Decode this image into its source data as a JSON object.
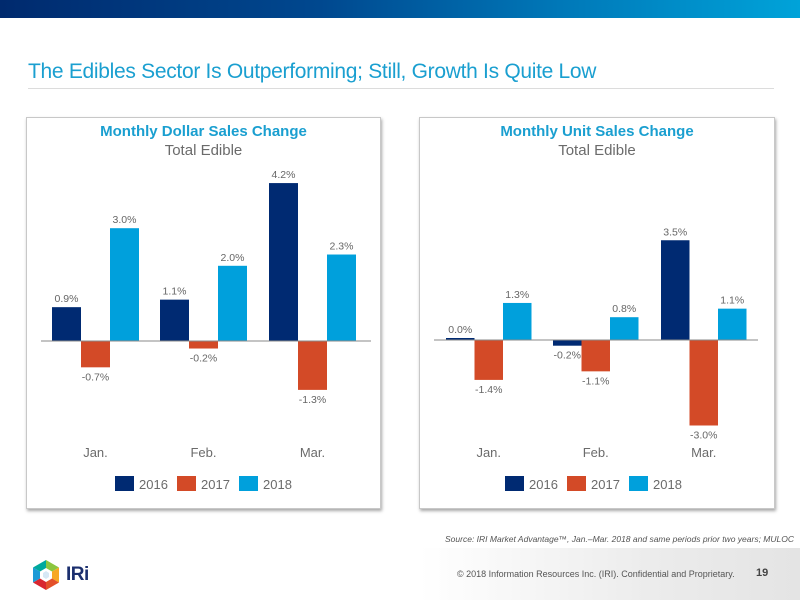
{
  "slide": {
    "title": "The Edibles Sector Is Outperforming; Still, Growth Is Quite Low",
    "source": "Source: IRI Market Advantage™, Jan.–Mar. 2018 and same periods prior two years; MULOC",
    "copyright": "© 2018 Information Resources Inc. (IRI). Confidential and Proprietary.",
    "page_number": "19",
    "logo_text": "IRi",
    "colors": {
      "2016": "#002a72",
      "2017": "#d34a27",
      "2018": "#00a0dc",
      "title": "#1a9fd0"
    }
  },
  "chart_data": [
    {
      "type": "bar",
      "title": "Monthly Dollar Sales Change",
      "subtitle": "Total Edible",
      "categories": [
        "Jan.",
        "Feb.",
        "Mar."
      ],
      "series": [
        {
          "name": "2016",
          "values": [
            0.9,
            1.1,
            4.2
          ],
          "labels": [
            "0.9%",
            "1.1%",
            "4.2%"
          ]
        },
        {
          "name": "2017",
          "values": [
            -0.7,
            -0.2,
            -1.3
          ],
          "labels": [
            "-0.7%",
            "-0.2%",
            "-1.3%"
          ]
        },
        {
          "name": "2018",
          "values": [
            3.0,
            2.0,
            2.3
          ],
          "labels": [
            "3.0%",
            "2.0%",
            "2.3%"
          ]
        }
      ],
      "xlabel": "",
      "ylabel": "",
      "ylim": [
        -1.5,
        4.5
      ],
      "grid": false,
      "legend": [
        "2016",
        "2017",
        "2018"
      ],
      "legend_position": "bottom"
    },
    {
      "type": "bar",
      "title": "Monthly Unit Sales Change",
      "subtitle": "Total Edible",
      "categories": [
        "Jan.",
        "Feb.",
        "Mar."
      ],
      "series": [
        {
          "name": "2016",
          "values": [
            0.0,
            -0.2,
            3.5
          ],
          "labels": [
            "0.0%",
            "-0.2%",
            "3.5%"
          ]
        },
        {
          "name": "2017",
          "values": [
            -1.4,
            -1.1,
            -3.0
          ],
          "labels": [
            "-1.4%",
            "-1.1%",
            "-3.0%"
          ]
        },
        {
          "name": "2018",
          "values": [
            1.3,
            0.8,
            1.1
          ],
          "labels": [
            "1.3%",
            "0.8%",
            "1.1%"
          ]
        }
      ],
      "xlabel": "",
      "ylabel": "",
      "ylim": [
        -3.3,
        3.7
      ],
      "grid": false,
      "legend": [
        "2016",
        "2017",
        "2018"
      ],
      "legend_position": "bottom"
    }
  ]
}
